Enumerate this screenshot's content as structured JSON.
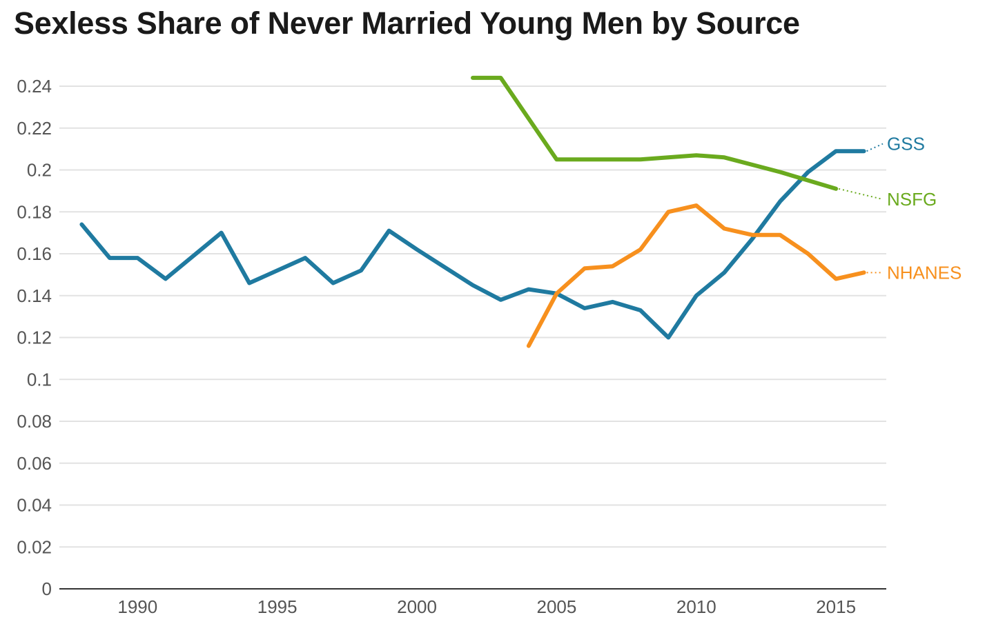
{
  "chart_data": {
    "type": "line",
    "title": "Sexless Share of Never Married Young Men by Source",
    "xlabel": "",
    "ylabel": "",
    "xlim": [
      1987.2,
      2016.8
    ],
    "ylim": [
      0,
      0.24
    ],
    "grid": true,
    "legend": "inline labels at right end of each line",
    "x_ticks": [
      {
        "value": 1990,
        "label": "1990"
      },
      {
        "value": 1995,
        "label": "1995"
      },
      {
        "value": 2000,
        "label": "2000"
      },
      {
        "value": 2005,
        "label": "2005"
      },
      {
        "value": 2010,
        "label": "2010"
      },
      {
        "value": 2015,
        "label": "2015"
      }
    ],
    "y_ticks": [
      {
        "value": 0,
        "label": "0"
      },
      {
        "value": 0.02,
        "label": "0.02"
      },
      {
        "value": 0.04,
        "label": "0.04"
      },
      {
        "value": 0.06,
        "label": "0.06"
      },
      {
        "value": 0.08,
        "label": "0.08"
      },
      {
        "value": 0.1,
        "label": "0.1"
      },
      {
        "value": 0.12,
        "label": "0.12"
      },
      {
        "value": 0.14,
        "label": "0.14"
      },
      {
        "value": 0.16,
        "label": "0.16"
      },
      {
        "value": 0.18,
        "label": "0.18"
      },
      {
        "value": 0.2,
        "label": "0.2"
      },
      {
        "value": 0.22,
        "label": "0.22"
      },
      {
        "value": 0.24,
        "label": "0.24"
      }
    ],
    "series": [
      {
        "name": "GSS",
        "color": "#1f7aa0",
        "label_y": 0.2125,
        "x": [
          1988,
          1989,
          1990,
          1991,
          1993,
          1994,
          1996,
          1997,
          1998,
          1999,
          2000,
          2002,
          2003,
          2004,
          2005,
          2006,
          2007,
          2008,
          2009,
          2010,
          2011,
          2012,
          2013,
          2014,
          2015,
          2016
        ],
        "y": [
          0.174,
          0.158,
          0.158,
          0.148,
          0.17,
          0.146,
          0.158,
          0.146,
          0.152,
          0.171,
          0.162,
          0.145,
          0.138,
          0.143,
          0.141,
          0.134,
          0.137,
          0.133,
          0.12,
          0.14,
          0.151,
          0.167,
          0.185,
          0.199,
          0.209,
          0.209
        ]
      },
      {
        "name": "NSFG",
        "color": "#6aaa1e",
        "label_y": 0.186,
        "x": [
          2002,
          2003,
          2005,
          2008,
          2010,
          2011,
          2013,
          2015
        ],
        "y": [
          0.244,
          0.244,
          0.205,
          0.205,
          0.207,
          0.206,
          0.199,
          0.191
        ]
      },
      {
        "name": "NHANES",
        "color": "#f7901e",
        "label_y": 0.151,
        "x": [
          2004,
          2005,
          2006,
          2007,
          2008,
          2009,
          2010,
          2011,
          2012,
          2013,
          2014,
          2015,
          2016
        ],
        "y": [
          0.116,
          0.141,
          0.153,
          0.154,
          0.162,
          0.18,
          0.183,
          0.172,
          0.169,
          0.169,
          0.16,
          0.148,
          0.151
        ]
      }
    ]
  },
  "colors": {
    "grid": "#e2e2e2",
    "axis": "#333333",
    "tick_text": "#555555"
  }
}
